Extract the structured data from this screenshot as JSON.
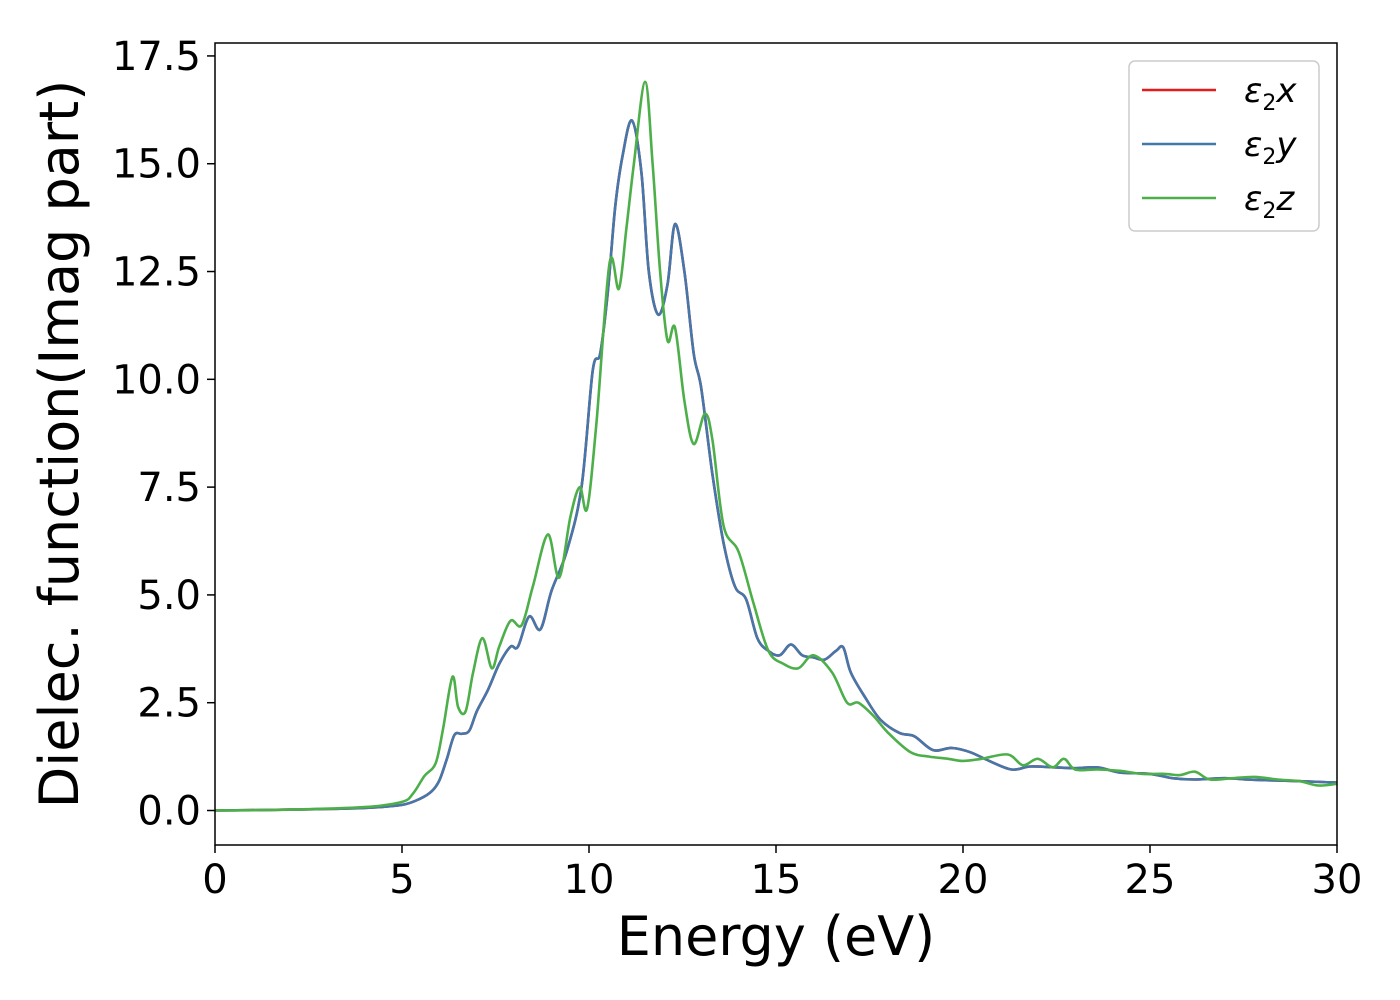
{
  "chart_data": {
    "type": "line",
    "xlabel": "Energy (eV)",
    "ylabel": "Dielec. function(Imag part)",
    "xlim": [
      0,
      30
    ],
    "ylim": [
      -0.8,
      17.8
    ],
    "xticks": [
      0,
      5,
      10,
      15,
      20,
      25,
      30
    ],
    "xtick_labels": [
      "0",
      "5",
      "10",
      "15",
      "20",
      "25",
      "30"
    ],
    "yticks": [
      0,
      2.5,
      5,
      7.5,
      10,
      12.5,
      15,
      17.5
    ],
    "ytick_labels": [
      "0.0",
      "2.5",
      "5.0",
      "7.5",
      "10.0",
      "12.5",
      "15.0",
      "17.5"
    ],
    "grid": false,
    "legend_position": "top-right",
    "series": [
      {
        "name": "ε2x",
        "legend": {
          "base": "ε",
          "sub": "2",
          "tail": "x"
        },
        "color": "#e41a1c",
        "x": [
          0,
          2,
          4,
          5,
          5.5,
          5.8,
          6.0,
          6.2,
          6.4,
          6.6,
          6.8,
          7.0,
          7.3,
          7.6,
          7.9,
          8.1,
          8.4,
          8.7,
          9.0,
          9.4,
          9.8,
          10.1,
          10.3,
          10.5,
          10.7,
          10.9,
          11.15,
          11.4,
          11.6,
          11.85,
          12.1,
          12.3,
          12.55,
          12.8,
          13.0,
          13.3,
          13.6,
          13.9,
          14.2,
          14.5,
          14.8,
          15.1,
          15.4,
          15.7,
          16.0,
          16.3,
          16.6,
          16.8,
          17.0,
          17.4,
          17.8,
          18.3,
          18.7,
          19.2,
          19.7,
          20.2,
          20.7,
          21.3,
          21.8,
          22.5,
          23.0,
          23.6,
          24.2,
          25.0,
          25.6,
          26.2,
          27.0,
          27.6,
          28.2,
          29.0,
          29.6,
          30
        ],
        "y": [
          0,
          0.02,
          0.06,
          0.13,
          0.28,
          0.45,
          0.7,
          1.2,
          1.75,
          1.78,
          1.85,
          2.3,
          2.8,
          3.4,
          3.8,
          3.8,
          4.5,
          4.2,
          5.1,
          6.0,
          7.5,
          10.2,
          10.6,
          12.0,
          14.0,
          15.2,
          16.0,
          14.8,
          12.5,
          11.5,
          12.2,
          13.6,
          12.5,
          10.6,
          9.8,
          7.8,
          6.2,
          5.2,
          4.9,
          4.0,
          3.7,
          3.6,
          3.85,
          3.6,
          3.55,
          3.5,
          3.7,
          3.78,
          3.2,
          2.6,
          2.1,
          1.8,
          1.72,
          1.4,
          1.45,
          1.35,
          1.15,
          0.95,
          1.02,
          1.0,
          0.98,
          1.0,
          0.88,
          0.85,
          0.75,
          0.72,
          0.75,
          0.72,
          0.7,
          0.68,
          0.66,
          0.65
        ]
      },
      {
        "name": "ε2y",
        "legend": {
          "base": "ε",
          "sub": "2",
          "tail": "y"
        },
        "color": "#4477aa",
        "x": [
          0,
          2,
          4,
          5,
          5.5,
          5.8,
          6.0,
          6.2,
          6.4,
          6.6,
          6.8,
          7.0,
          7.3,
          7.6,
          7.9,
          8.1,
          8.4,
          8.7,
          9.0,
          9.4,
          9.8,
          10.1,
          10.3,
          10.5,
          10.7,
          10.9,
          11.15,
          11.4,
          11.6,
          11.85,
          12.1,
          12.3,
          12.55,
          12.8,
          13.0,
          13.3,
          13.6,
          13.9,
          14.2,
          14.5,
          14.8,
          15.1,
          15.4,
          15.7,
          16.0,
          16.3,
          16.6,
          16.8,
          17.0,
          17.4,
          17.8,
          18.3,
          18.7,
          19.2,
          19.7,
          20.2,
          20.7,
          21.3,
          21.8,
          22.5,
          23.0,
          23.6,
          24.2,
          25.0,
          25.6,
          26.2,
          27.0,
          27.6,
          28.2,
          29.0,
          29.6,
          30
        ],
        "y": [
          0,
          0.02,
          0.06,
          0.13,
          0.28,
          0.45,
          0.7,
          1.2,
          1.75,
          1.78,
          1.85,
          2.3,
          2.8,
          3.4,
          3.8,
          3.8,
          4.5,
          4.2,
          5.1,
          6.0,
          7.5,
          10.2,
          10.6,
          12.0,
          14.0,
          15.2,
          16.0,
          14.8,
          12.5,
          11.5,
          12.2,
          13.6,
          12.5,
          10.6,
          9.8,
          7.8,
          6.2,
          5.2,
          4.9,
          4.0,
          3.7,
          3.6,
          3.85,
          3.6,
          3.55,
          3.5,
          3.7,
          3.78,
          3.2,
          2.6,
          2.1,
          1.8,
          1.72,
          1.4,
          1.45,
          1.35,
          1.15,
          0.95,
          1.02,
          1.0,
          0.98,
          1.0,
          0.88,
          0.85,
          0.75,
          0.72,
          0.75,
          0.72,
          0.7,
          0.68,
          0.66,
          0.65
        ]
      },
      {
        "name": "ε2z",
        "legend": {
          "base": "ε",
          "sub": "2",
          "tail": "z"
        },
        "color": "#4daf4a",
        "x": [
          0,
          2,
          4,
          5,
          5.3,
          5.6,
          5.9,
          6.1,
          6.35,
          6.5,
          6.7,
          6.9,
          7.15,
          7.4,
          7.6,
          7.9,
          8.2,
          8.5,
          8.9,
          9.2,
          9.5,
          9.75,
          9.95,
          10.2,
          10.55,
          10.8,
          11.0,
          11.2,
          11.5,
          11.7,
          11.9,
          12.1,
          12.3,
          12.55,
          12.8,
          13.1,
          13.3,
          13.6,
          14.0,
          14.4,
          14.8,
          15.2,
          15.6,
          16.0,
          16.5,
          16.9,
          17.2,
          17.6,
          18.0,
          18.6,
          19.1,
          19.6,
          20.0,
          20.5,
          21.2,
          21.6,
          22.0,
          22.4,
          22.7,
          23.0,
          23.6,
          24.2,
          24.8,
          25.4,
          25.8,
          26.2,
          26.6,
          27.2,
          27.8,
          28.4,
          29.0,
          29.5,
          30
        ],
        "y": [
          0,
          0.02,
          0.08,
          0.2,
          0.4,
          0.8,
          1.1,
          1.9,
          3.1,
          2.4,
          2.3,
          3.2,
          4.0,
          3.3,
          3.8,
          4.4,
          4.3,
          5.2,
          6.4,
          5.4,
          6.8,
          7.5,
          7.0,
          9.0,
          12.7,
          12.1,
          13.5,
          15.0,
          16.9,
          15.0,
          12.5,
          10.9,
          11.2,
          9.5,
          8.5,
          9.2,
          8.6,
          6.6,
          6.0,
          4.8,
          3.7,
          3.4,
          3.3,
          3.6,
          3.2,
          2.5,
          2.5,
          2.2,
          1.8,
          1.35,
          1.25,
          1.2,
          1.15,
          1.2,
          1.3,
          1.05,
          1.2,
          1.0,
          1.2,
          0.95,
          0.95,
          0.92,
          0.85,
          0.85,
          0.82,
          0.9,
          0.72,
          0.75,
          0.78,
          0.72,
          0.68,
          0.58,
          0.62
        ]
      }
    ]
  }
}
